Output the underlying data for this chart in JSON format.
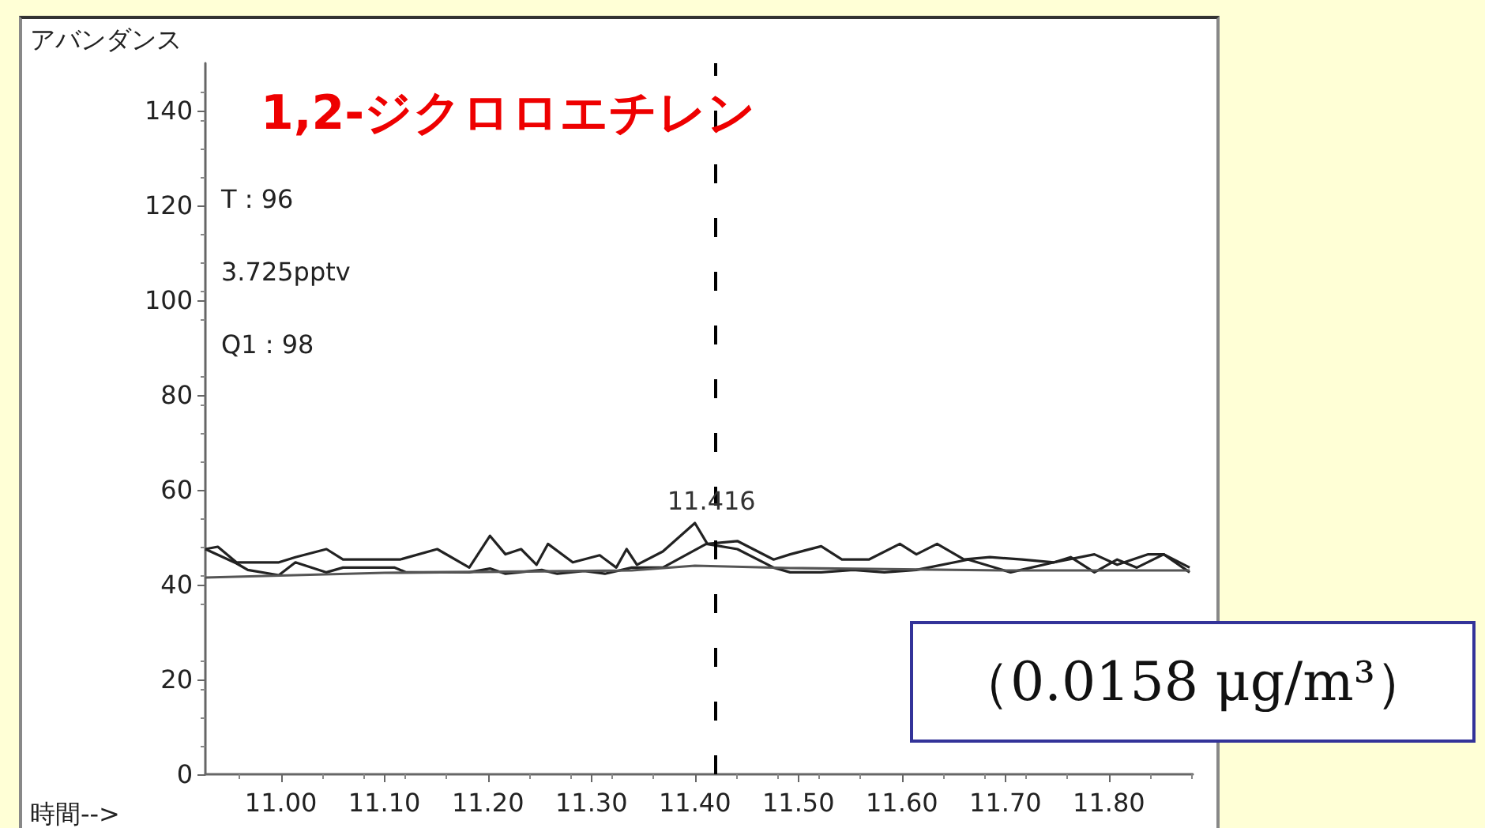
{
  "chart_data": {
    "type": "line",
    "title": "1,2-ジクロロエチレン",
    "ylabel": "アバンダンス",
    "xlabel": "時間-->",
    "annotations": [
      "T : 96",
      "3.725pptv",
      "Q1 : 98",
      {
        "text": "11.416",
        "x": 11.416,
        "y": 53
      },
      "（0.0158 μg/m³）"
    ],
    "series": [
      {
        "color": "#222222",
        "x": [
          10.927,
          10.939,
          10.957,
          10.998,
          11.014,
          11.044,
          11.06,
          11.115,
          11.151,
          11.182,
          11.202,
          11.217,
          11.232,
          11.247,
          11.258,
          11.282,
          11.308,
          11.324,
          11.334,
          11.344,
          11.369,
          11.4,
          11.412,
          11.441,
          11.476,
          11.492,
          11.522,
          11.542,
          11.568,
          11.598,
          11.614,
          11.634,
          11.66,
          11.685,
          11.716,
          11.747,
          11.763,
          11.786,
          11.808,
          11.827,
          11.853,
          11.878
        ],
        "values": [
          47.5,
          48,
          44.7,
          44.7,
          45.8,
          47.5,
          45.3,
          45.3,
          47.5,
          43.6,
          50.3,
          46.4,
          47.5,
          44.2,
          48.6,
          44.7,
          46.2,
          43.6,
          47.5,
          44.2,
          47,
          53,
          48.6,
          49.2,
          45.3,
          46.4,
          48.1,
          45.3,
          45.3,
          48.6,
          46.4,
          48.6,
          45.3,
          45.8,
          45.3,
          44.7,
          45.8,
          42.6,
          45.3,
          43.6,
          46.4,
          42.6
        ]
      },
      {
        "color": "#222222",
        "x": [
          10.927,
          10.957,
          10.968,
          10.998,
          11.014,
          11.044,
          11.06,
          11.11,
          11.121,
          11.182,
          11.202,
          11.217,
          11.252,
          11.267,
          11.293,
          11.313,
          11.339,
          11.369,
          11.411,
          11.441,
          11.476,
          11.492,
          11.522,
          11.553,
          11.583,
          11.614,
          11.664,
          11.705,
          11.747,
          11.786,
          11.808,
          11.838,
          11.853,
          11.878
        ],
        "values": [
          47.5,
          44.5,
          43.1,
          42,
          44.7,
          42.6,
          43.6,
          43.6,
          42.6,
          42.6,
          43.4,
          42.3,
          43.1,
          42.3,
          42.9,
          42.3,
          43.6,
          43.6,
          48.6,
          47.5,
          43.6,
          42.6,
          42.6,
          43.1,
          42.6,
          43.1,
          45.3,
          42.6,
          44.7,
          46.4,
          44.2,
          46.4,
          46.4,
          43.6
        ]
      },
      {
        "color": "#555555",
        "x": [
          10.927,
          11.1,
          11.339,
          11.4,
          11.492,
          11.7,
          11.878
        ],
        "values": [
          41.5,
          42.5,
          43,
          44,
          43.5,
          43,
          43
        ]
      }
    ],
    "xlim": [
      10.927,
      11.881
    ],
    "xticks": [
      {
        "value": 11,
        "label": "11.00"
      },
      {
        "value": 11.1,
        "label": "11.10"
      },
      {
        "value": 11.2,
        "label": "11.20"
      },
      {
        "value": 11.3,
        "label": "11.30"
      },
      {
        "value": 11.4,
        "label": "11.40"
      },
      {
        "value": 11.5,
        "label": "11.50"
      },
      {
        "value": 11.6,
        "label": "11.60"
      },
      {
        "value": 11.7,
        "label": "11.70"
      },
      {
        "value": 11.8,
        "label": "11.80"
      }
    ],
    "ylim": [
      0,
      150
    ],
    "yticks": [
      0,
      20,
      40,
      60,
      80,
      100,
      120,
      140
    ],
    "ref_lines": [
      {
        "axis": "x",
        "value": 11.416,
        "color": "#000000",
        "line_style": "dashed"
      }
    ],
    "marker": "none",
    "line_style": "solid",
    "grid": false
  }
}
